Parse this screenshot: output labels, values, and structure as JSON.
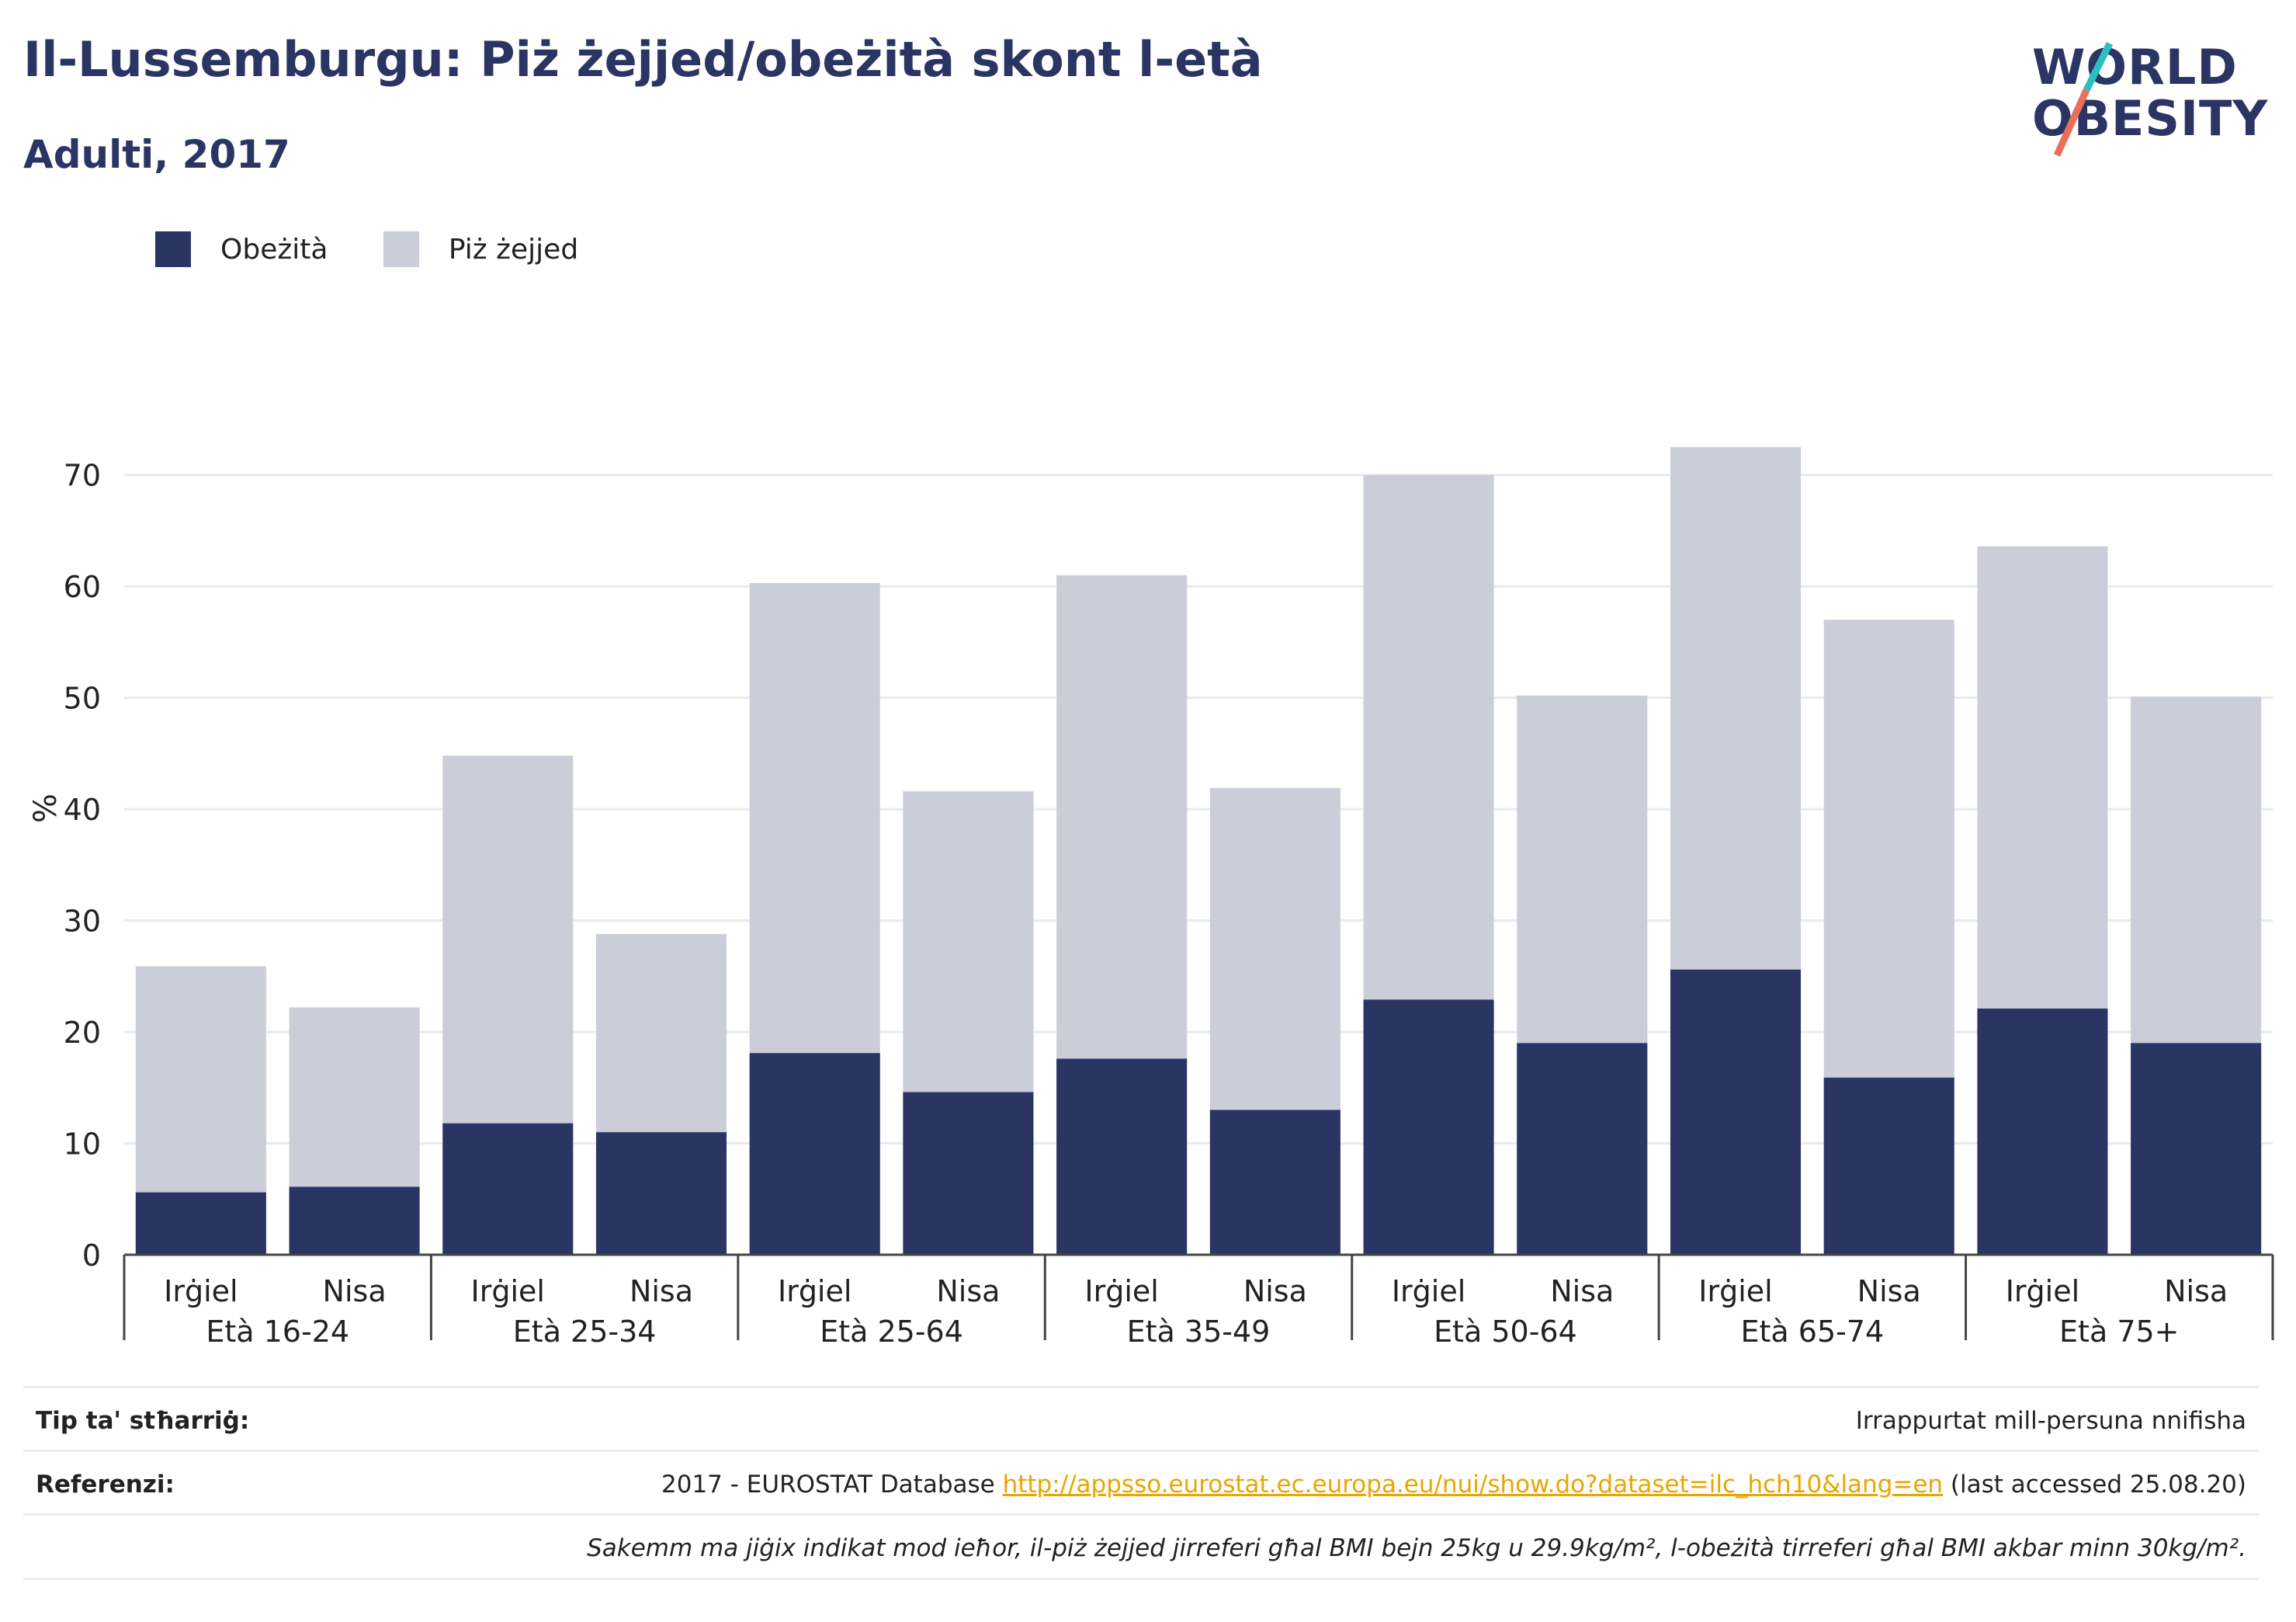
{
  "header": {
    "title": "Il-Lussemburgu: Piż żejjed/obeżità skont l-età",
    "subtitle": "Adulti, 2017"
  },
  "logo": {
    "line1": "WORLD",
    "line2": "OBESITY",
    "accent_teal": "#2cbfbf",
    "accent_red": "#e8705a"
  },
  "legend": {
    "items": [
      {
        "label": "Obeżità",
        "color": "#2a3563"
      },
      {
        "label": "Piż żejjed",
        "color": "#cbcdd9"
      }
    ]
  },
  "chart_data": {
    "type": "bar",
    "stacked": false,
    "overlay": true,
    "ylabel": "%",
    "ylim": [
      0,
      75
    ],
    "yticks": [
      0,
      10,
      20,
      30,
      40,
      50,
      60,
      70
    ],
    "grid": true,
    "legend_position": "top-left",
    "groups": [
      "Età 16-24",
      "Età 25-34",
      "Età 25-64",
      "Età 35-49",
      "Età 50-64",
      "Età 65-74",
      "Età 75+"
    ],
    "subcategories": [
      "Irġiel",
      "Nisa"
    ],
    "series": [
      {
        "name": "Piż żejjed",
        "color": "#cbcdd9",
        "values": [
          25.9,
          22.2,
          44.8,
          28.8,
          60.3,
          41.6,
          61.0,
          41.9,
          70.0,
          50.2,
          72.5,
          57.0,
          63.6,
          50.1
        ]
      },
      {
        "name": "Obeżità",
        "color": "#2a3563",
        "values": [
          5.6,
          6.1,
          11.8,
          11.0,
          18.1,
          14.6,
          17.6,
          13.0,
          22.9,
          19.0,
          25.6,
          15.9,
          22.1,
          19.0
        ]
      }
    ]
  },
  "footer": {
    "type_label": "Tip ta' stħarriġ:",
    "type_value": "Irrappurtat mill-persuna nnifisha",
    "ref_label": "Referenzi:",
    "ref_prefix": "2017 - EUROSTAT Database ",
    "ref_link": "http://appsso.eurostat.ec.europa.eu/nui/show.do?dataset=ilc_hch10&lang=en",
    "ref_suffix": " (last accessed 25.08.20)",
    "note": "Sakemm ma jiġix indikat mod ieħor, il-piż żejjed jirreferi għal BMI bejn 25kg u 29.9kg/m², l-obeżità tirreferi għal BMI akbar minn 30kg/m²."
  }
}
